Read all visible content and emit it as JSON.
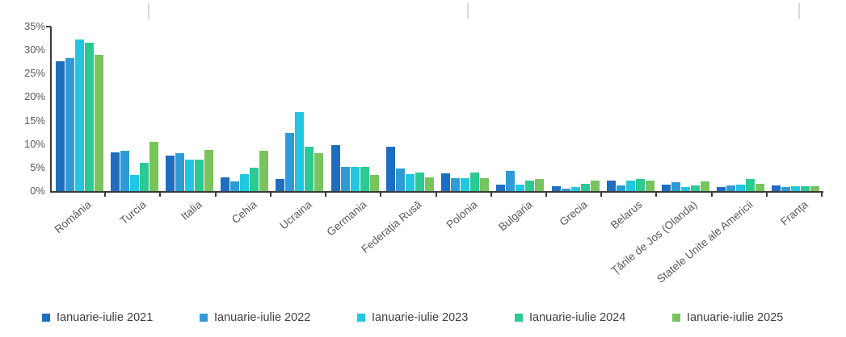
{
  "chart_data": {
    "type": "bar",
    "title": "",
    "xlabel": "",
    "ylabel": "",
    "ylim": [
      0,
      35
    ],
    "ytick_step": 5,
    "ytick_labels": [
      "0%",
      "5%",
      "10%",
      "15%",
      "20%",
      "25%",
      "30%",
      "35%"
    ],
    "grid": false,
    "legend_position": "bottom",
    "categories": [
      "România",
      "Turcia",
      "Italia",
      "Cehia",
      "Ucraina",
      "Germania",
      "Federația Rusă",
      "Polonia",
      "Bulgaria",
      "Grecia",
      "Belarus",
      "Țările de Jos (Olanda)",
      "Statele Unite ale Americii",
      "Franța"
    ],
    "series": [
      {
        "name": "Ianuarie-iulie 2021",
        "color": "#1f6dbe",
        "values": [
          27.7,
          8.3,
          7.5,
          3.0,
          2.6,
          9.7,
          9.5,
          3.8,
          1.3,
          1.0,
          2.3,
          1.3,
          0.8,
          1.2
        ]
      },
      {
        "name": "Ianuarie-iulie 2022",
        "color": "#2e9bd6",
        "values": [
          28.3,
          8.5,
          8.1,
          2.0,
          12.4,
          5.2,
          4.8,
          2.7,
          4.3,
          0.6,
          1.2,
          1.9,
          1.2,
          0.9
        ]
      },
      {
        "name": "Ianuarie-iulie 2023",
        "color": "#21c7e0",
        "values": [
          32.3,
          3.4,
          6.7,
          3.6,
          16.8,
          5.2,
          3.6,
          2.7,
          1.3,
          0.9,
          2.2,
          0.8,
          1.3,
          1.0
        ]
      },
      {
        "name": "Ianuarie-iulie 2024",
        "color": "#2bc994",
        "values": [
          31.6,
          6.0,
          6.7,
          4.9,
          9.4,
          5.2,
          3.9,
          4.0,
          2.2,
          1.6,
          2.6,
          1.2,
          2.5,
          1.0
        ]
      },
      {
        "name": "Ianuarie-iulie 2025",
        "color": "#79c35e",
        "values": [
          29.0,
          10.4,
          8.8,
          8.6,
          8.0,
          3.4,
          3.0,
          2.8,
          2.5,
          2.2,
          2.2,
          2.1,
          1.6,
          1.1
        ]
      }
    ]
  }
}
